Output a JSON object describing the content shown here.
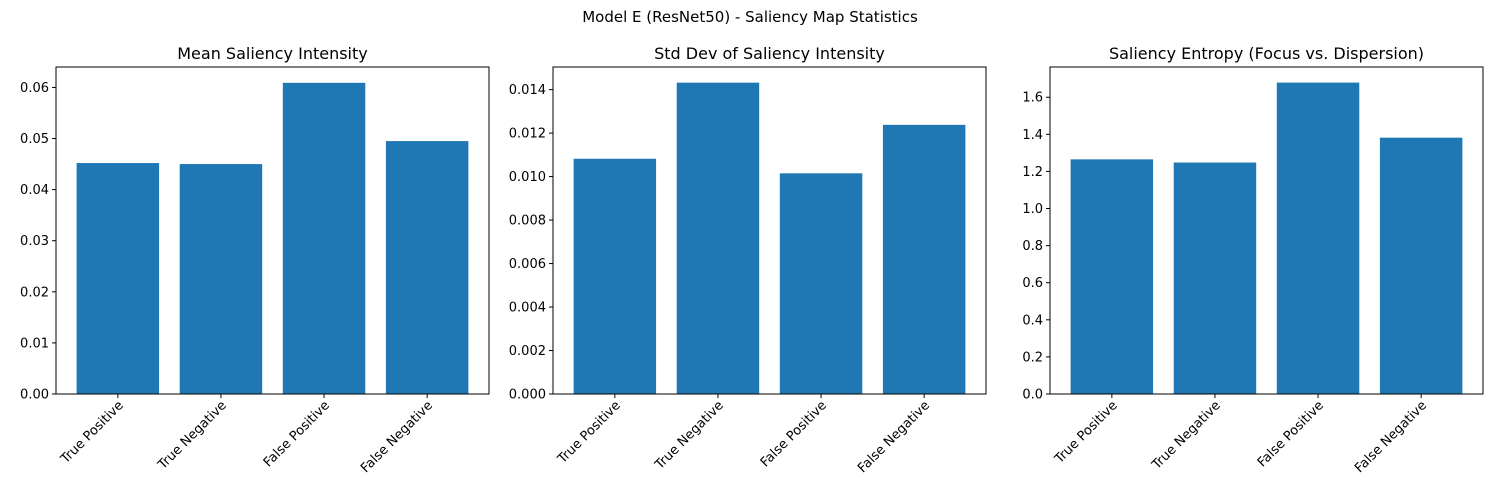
{
  "figure": {
    "suptitle": "Model E (ResNet50) - Saliency Map Statistics"
  },
  "colors": {
    "bar": "#1f77b4",
    "axis": "#000000",
    "background": "#ffffff"
  },
  "chart_data": [
    {
      "type": "bar",
      "title": "Mean Saliency Intensity",
      "xlabel": "",
      "ylabel": "",
      "categories": [
        "True Positive",
        "True Negative",
        "False Positive",
        "False Negative"
      ],
      "values": [
        0.0452,
        0.045,
        0.0609,
        0.0495
      ],
      "ylim": [
        0,
        0.064
      ],
      "yticks": [
        0.0,
        0.01,
        0.02,
        0.03,
        0.04,
        0.05,
        0.06
      ],
      "ytick_labels": [
        "0.00",
        "0.01",
        "0.02",
        "0.03",
        "0.04",
        "0.05",
        "0.06"
      ],
      "grid": false,
      "legend": "none"
    },
    {
      "type": "bar",
      "title": "Std Dev of Saliency Intensity",
      "xlabel": "",
      "ylabel": "",
      "categories": [
        "True Positive",
        "True Negative",
        "False Positive",
        "False Negative"
      ],
      "values": [
        0.01082,
        0.01432,
        0.01015,
        0.01238
      ],
      "ylim": [
        0,
        0.01504
      ],
      "yticks": [
        0.0,
        0.002,
        0.004,
        0.006,
        0.008,
        0.01,
        0.012,
        0.014
      ],
      "ytick_labels": [
        "0.000",
        "0.002",
        "0.004",
        "0.006",
        "0.008",
        "0.010",
        "0.012",
        "0.014"
      ],
      "grid": false,
      "legend": "none"
    },
    {
      "type": "bar",
      "title": "Saliency Entropy (Focus vs. Dispersion)",
      "xlabel": "",
      "ylabel": "",
      "categories": [
        "True Positive",
        "True Negative",
        "False Positive",
        "False Negative"
      ],
      "values": [
        1.265,
        1.248,
        1.679,
        1.382
      ],
      "ylim": [
        0,
        1.763
      ],
      "yticks": [
        0.0,
        0.2,
        0.4,
        0.6,
        0.8,
        1.0,
        1.2,
        1.4,
        1.6
      ],
      "ytick_labels": [
        "0.0",
        "0.2",
        "0.4",
        "0.6",
        "0.8",
        "1.0",
        "1.2",
        "1.4",
        "1.6"
      ],
      "grid": false,
      "legend": "none"
    }
  ]
}
